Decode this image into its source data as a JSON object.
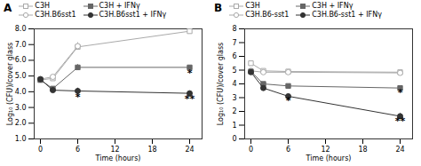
{
  "chart_data": [
    {
      "type": "line",
      "title": "A",
      "xlabel": "Time (hours)",
      "ylabel": "Log₁₀ (CFU)/cover glass",
      "x": [
        0,
        2,
        6,
        24
      ],
      "series": [
        {
          "name": "C3H",
          "color": "#aaaaaa",
          "marker": "square-open",
          "line_style": "solid",
          "values": [
            4.75,
            4.85,
            6.85,
            7.85
          ],
          "yerr": [
            0.08,
            0.08,
            0.18,
            0.1
          ]
        },
        {
          "name": "C3H.B6sst1",
          "color": "#aaaaaa",
          "marker": "circle-open",
          "line_style": "solid",
          "values": [
            4.8,
            4.95,
            6.9,
            null
          ],
          "yerr": [
            0.08,
            0.08,
            0.22,
            null
          ]
        },
        {
          "name": "C3H + IFNγ",
          "color": "#666666",
          "marker": "square",
          "line_style": "solid",
          "values": [
            4.75,
            4.2,
            5.55,
            5.55
          ],
          "yerr": [
            0.08,
            0.12,
            0.18,
            0.1
          ]
        },
        {
          "name": "C3H.B6sst1 + IFNγ",
          "color": "#333333",
          "marker": "circle",
          "line_style": "solid",
          "values": [
            4.8,
            4.1,
            4.05,
            3.9
          ],
          "yerr": [
            0.08,
            0.1,
            0.18,
            0.12
          ]
        }
      ],
      "xlim": [
        -1,
        26
      ],
      "xticks": [
        0,
        6,
        12,
        18,
        24
      ],
      "ylim": [
        1,
        8
      ],
      "yticks": [
        1,
        2,
        3,
        4,
        5,
        6,
        7,
        8
      ],
      "annotations": [
        {
          "x": 6,
          "y": 3.65,
          "text": "*"
        },
        {
          "x": 24,
          "y": 5.2,
          "text": "*"
        },
        {
          "x": 24,
          "y": 3.55,
          "text": "**"
        }
      ],
      "legend": "upper left",
      "grid": false
    },
    {
      "type": "line",
      "title": "B",
      "xlabel": "Time (hours)",
      "ylabel": "Log₁₀ (CFU)/cover glass",
      "x": [
        0,
        2,
        6,
        24
      ],
      "series": [
        {
          "name": "C3H",
          "color": "#aaaaaa",
          "marker": "square-open",
          "line_style": "solid",
          "values": [
            5.5,
            4.95,
            4.9,
            4.85
          ],
          "yerr": [
            0.08,
            0.08,
            0.08,
            0.08
          ]
        },
        {
          "name": "C3H.B6-sst1",
          "color": "#aaaaaa",
          "marker": "circle-open",
          "line_style": "solid",
          "values": [
            4.95,
            4.85,
            4.85,
            4.8
          ],
          "yerr": [
            0.08,
            0.08,
            0.08,
            0.08
          ]
        },
        {
          "name": "C3H + IFNγ",
          "color": "#666666",
          "marker": "square",
          "line_style": "solid",
          "values": [
            4.9,
            4.0,
            3.85,
            3.7
          ],
          "yerr": [
            0.08,
            0.1,
            0.1,
            0.1
          ]
        },
        {
          "name": "C3H.B6-sst1 + IFNγ",
          "color": "#333333",
          "marker": "circle",
          "line_style": "solid",
          "values": [
            4.85,
            3.7,
            3.1,
            1.65
          ],
          "yerr": [
            0.08,
            0.1,
            0.15,
            0.2
          ]
        }
      ],
      "xlim": [
        -1,
        26
      ],
      "xticks": [
        0,
        6,
        12,
        18,
        24
      ],
      "ylim": [
        0,
        8
      ],
      "yticks": [
        0,
        1,
        2,
        3,
        4,
        5,
        6,
        7,
        8
      ],
      "annotations": [
        {
          "x": 6,
          "y": 2.75,
          "text": "*"
        },
        {
          "x": 24,
          "y": 3.35,
          "text": "*"
        },
        {
          "x": 24,
          "y": 1.28,
          "text": "**"
        }
      ],
      "legend": "upper left",
      "grid": false
    }
  ]
}
